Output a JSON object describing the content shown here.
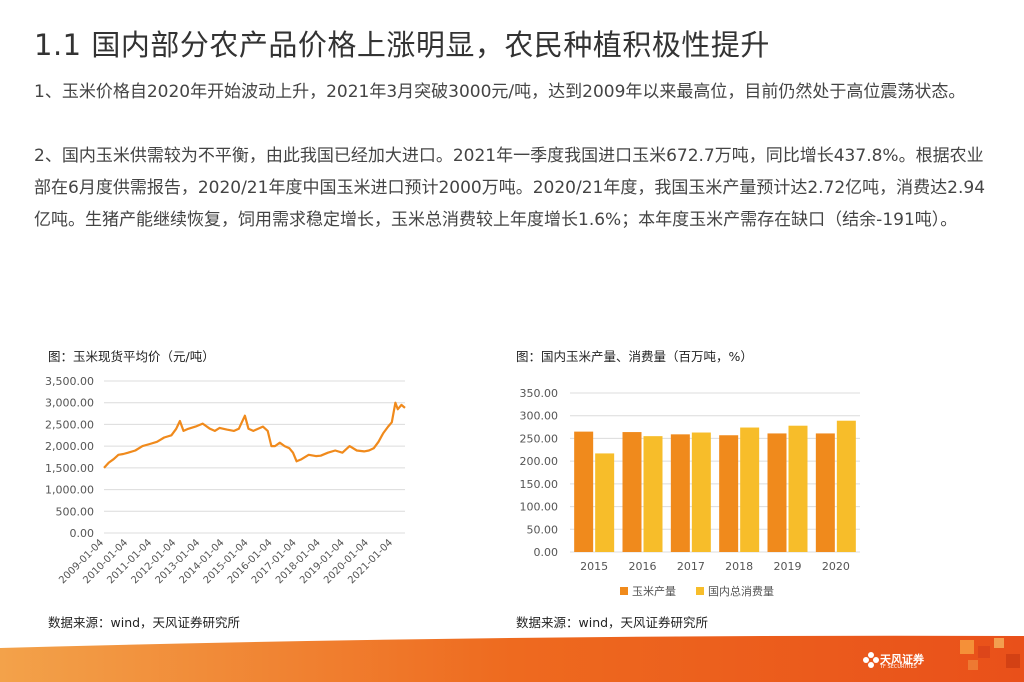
{
  "title": "1.1 国内部分农产品价格上涨明显，农民种植积极性提升",
  "paragraphs": [
    "1、玉米价格自2020年开始波动上升，2021年3月突破3000元/吨，达到2009年以来最高位，目前仍然处于高位震荡状态。",
    "2、国内玉米供需较为不平衡，由此我国已经加大进口。2021年一季度我国进口玉米672.7万吨，同比增长437.8%。根据农业部在6月度供需报告，2020/21年度中国玉米进口预计2000万吨。2020/21年度，我国玉米产量预计达2.72亿吨，消费达2.94亿吨。生猪产能继续恢复，饲用需求稳定增长，玉米总消费较上年度增长1.6%；本年度玉米产需存在缺口（结余-191吨）。"
  ],
  "source_label": "数据来源：wind，天风证券研究所",
  "logo": {
    "name": "天风证券",
    "sub": "TF SECURITIES"
  },
  "colors": {
    "orange": "#f08a1c",
    "yellow": "#f7bd2a",
    "footer": "#ee6a1f"
  },
  "chart_data": [
    {
      "type": "line",
      "caption": "图：玉米现货平均价（元/吨）",
      "ylim": [
        0,
        3500
      ],
      "yticks": [
        "3,500.00",
        "3,000.00",
        "2,500.00",
        "2,000.00",
        "1,500.00",
        "1,000.00",
        "500.00",
        "0.00"
      ],
      "xticks": [
        "2009-01-04",
        "2010-01-04",
        "2011-01-04",
        "2012-01-04",
        "2013-01-04",
        "2014-01-04",
        "2015-01-04",
        "2016-01-04",
        "2017-01-04",
        "2018-01-04",
        "2019-01-04",
        "2020-01-04",
        "2021-01-04"
      ],
      "xlim": [
        2009.0,
        2021.5
      ],
      "grid": true,
      "series": [
        {
          "color": "#f08a1c",
          "x": [
            2009.0,
            2009.2,
            2009.4,
            2009.6,
            2009.8,
            2010.0,
            2010.3,
            2010.6,
            2010.9,
            2011.2,
            2011.5,
            2011.8,
            2012.0,
            2012.15,
            2012.3,
            2012.5,
            2012.8,
            2013.1,
            2013.4,
            2013.6,
            2013.8,
            2014.1,
            2014.4,
            2014.6,
            2014.85,
            2015.0,
            2015.2,
            2015.4,
            2015.6,
            2015.8,
            2015.95,
            2016.1,
            2016.3,
            2016.5,
            2016.7,
            2016.85,
            2017.0,
            2017.2,
            2017.5,
            2017.8,
            2018.0,
            2018.3,
            2018.6,
            2018.9,
            2019.2,
            2019.5,
            2019.8,
            2020.0,
            2020.2,
            2020.4,
            2020.6,
            2020.8,
            2020.95,
            2021.1,
            2021.2,
            2021.35,
            2021.5
          ],
          "y": [
            1500,
            1620,
            1700,
            1800,
            1820,
            1850,
            1900,
            2000,
            2050,
            2100,
            2200,
            2250,
            2400,
            2580,
            2350,
            2400,
            2450,
            2520,
            2400,
            2350,
            2420,
            2380,
            2350,
            2400,
            2700,
            2400,
            2350,
            2400,
            2450,
            2350,
            2000,
            2000,
            2080,
            2000,
            1950,
            1850,
            1650,
            1700,
            1800,
            1770,
            1780,
            1850,
            1900,
            1850,
            2000,
            1900,
            1880,
            1900,
            1950,
            2100,
            2300,
            2450,
            2550,
            3000,
            2850,
            2950,
            2880
          ]
        }
      ]
    },
    {
      "type": "bar",
      "caption": "图：国内玉米产量、消费量（百万吨，%）",
      "categories": [
        "2015",
        "2016",
        "2017",
        "2018",
        "2019",
        "2020"
      ],
      "ylim": [
        0,
        350
      ],
      "yticks": [
        "350.00",
        "300.00",
        "250.00",
        "200.00",
        "150.00",
        "100.00",
        "50.00",
        "0.00"
      ],
      "grid": true,
      "legend_position": "bottom",
      "series": [
        {
          "name": "玉米产量",
          "color": "#f08a1c",
          "values": [
            265,
            264,
            259,
            257,
            261,
            261
          ]
        },
        {
          "name": "国内总消费量",
          "color": "#f7bd2a",
          "values": [
            217,
            255,
            263,
            274,
            278,
            289
          ]
        }
      ]
    }
  ]
}
